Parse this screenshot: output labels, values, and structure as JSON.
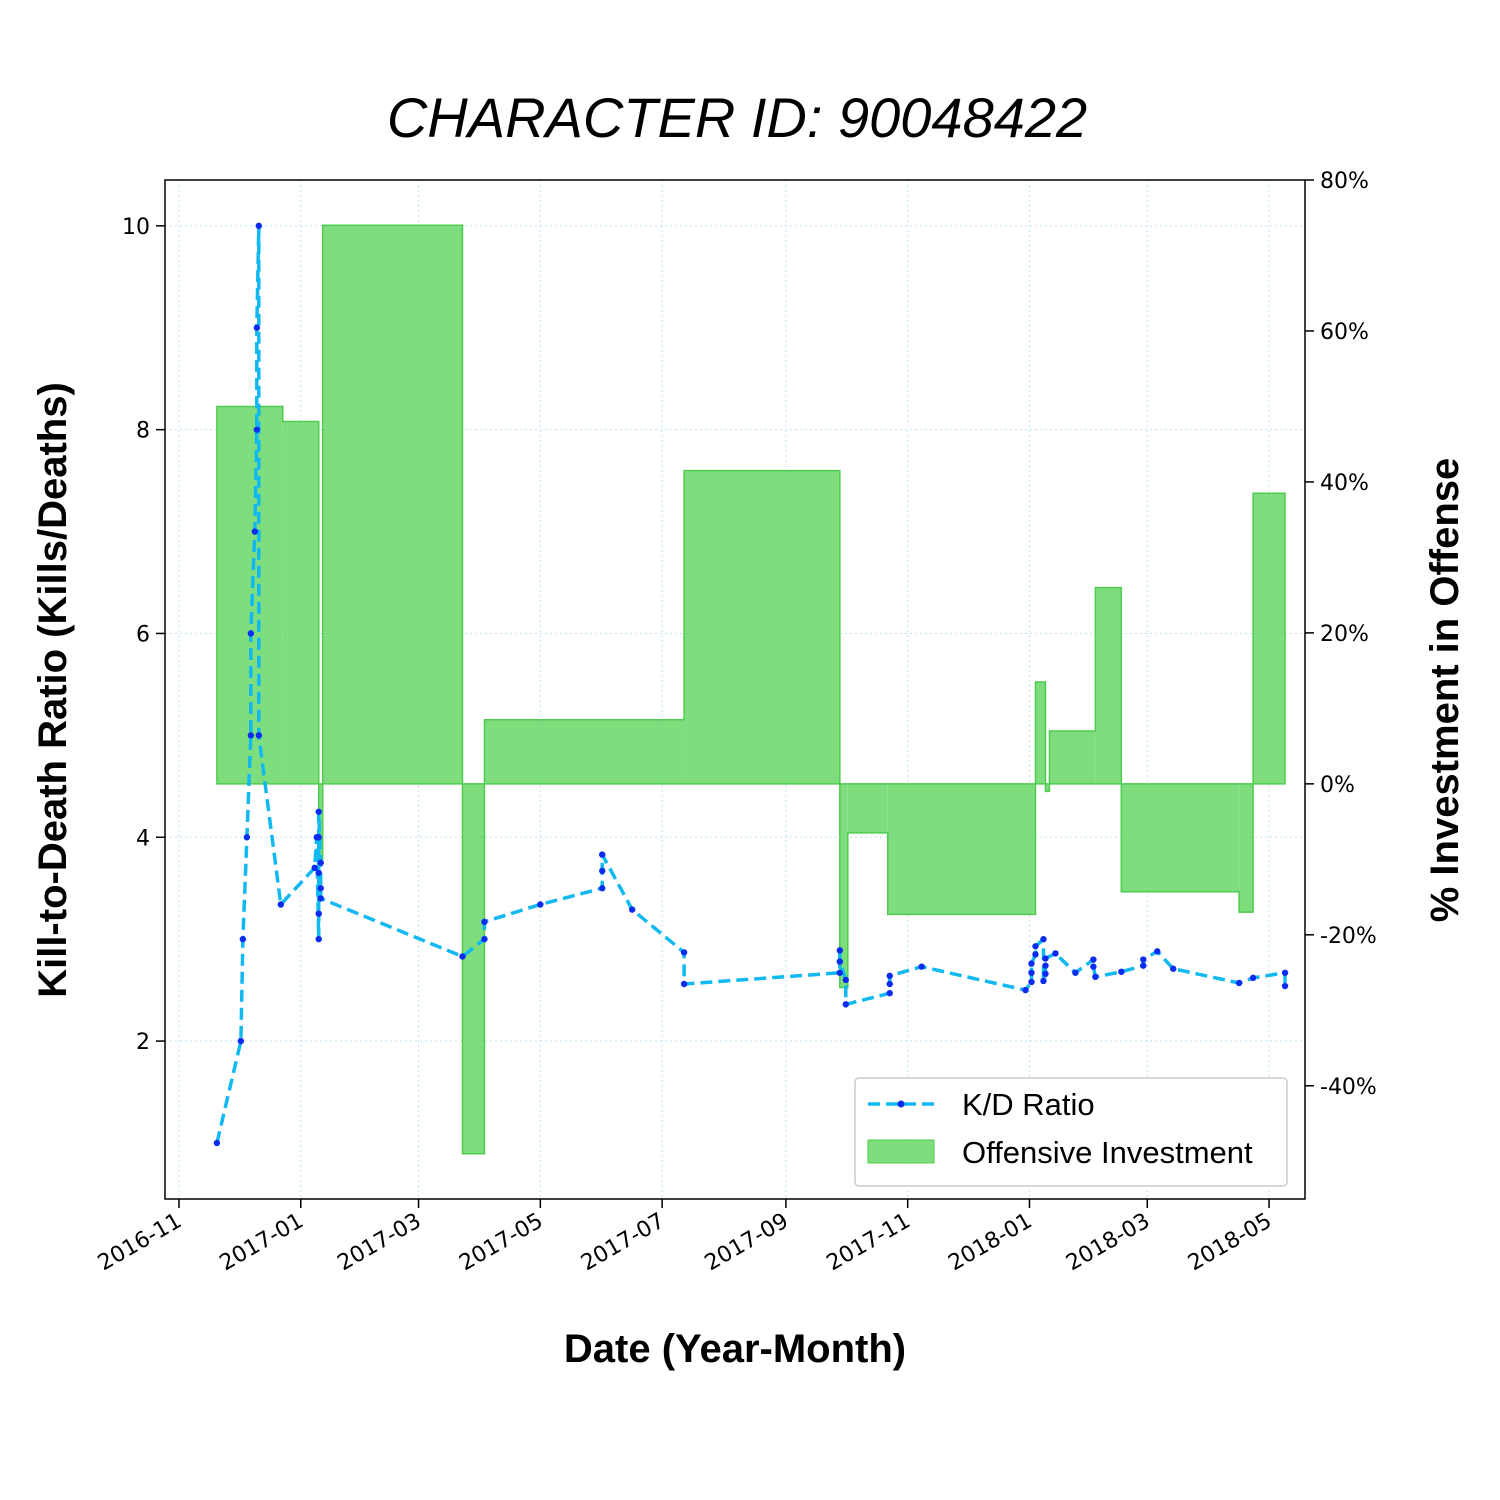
{
  "chart_data": {
    "type": "line+area",
    "title": "CHARACTER ID: 90048422",
    "xlabel": "Date (Year-Month)",
    "ylabel_left": "Kill-to-Death Ratio (Kills/Deaths)",
    "ylabel_right": "% Investment in Offense",
    "x_ticks": [
      "2016-11",
      "2017-01",
      "2017-03",
      "2017-05",
      "2017-07",
      "2017-09",
      "2017-11",
      "2018-01",
      "2018-03",
      "2018-05"
    ],
    "x_range": [
      "2016-10-25",
      "2018-05-19"
    ],
    "ylim_left": [
      0.45,
      10.45
    ],
    "y_ticks_left": [
      "2",
      "4",
      "6",
      "8",
      "10"
    ],
    "ylim_right": [
      -55,
      80
    ],
    "y_ticks_right": [
      "-40%",
      "-20%",
      "0%",
      "20%",
      "40%",
      "60%",
      "80%"
    ],
    "grid": true,
    "legend_position": "lower-right",
    "colors": {
      "kd": "#12b8f0",
      "kd_marker": "#0a2cf0",
      "investment": "#5ed65e"
    },
    "series": [
      {
        "name": "K/D Ratio",
        "style": "dashed line with point markers",
        "points": [
          [
            "2016-11-20",
            1.0
          ],
          [
            "2016-12-02",
            2.0
          ],
          [
            "2016-12-03",
            3.0
          ],
          [
            "2016-12-05",
            4.0
          ],
          [
            "2016-12-07",
            5.0
          ],
          [
            "2016-12-07",
            6.0
          ],
          [
            "2016-12-09",
            7.0
          ],
          [
            "2016-12-10",
            8.0
          ],
          [
            "2016-12-10",
            9.0
          ],
          [
            "2016-12-11",
            10.0
          ],
          [
            "2016-12-11",
            5.0
          ],
          [
            "2016-12-22",
            3.34
          ],
          [
            "2017-01-08",
            3.7
          ],
          [
            "2017-01-09",
            4.0
          ],
          [
            "2017-01-10",
            3.0
          ],
          [
            "2017-01-10",
            4.0
          ],
          [
            "2017-01-10",
            3.65
          ],
          [
            "2017-01-10",
            3.25
          ],
          [
            "2017-01-10",
            4.25
          ],
          [
            "2017-01-11",
            3.75
          ],
          [
            "2017-01-11",
            3.5
          ],
          [
            "2017-01-11",
            3.4
          ],
          [
            "2017-03-23",
            2.83
          ],
          [
            "2017-04-03",
            3.0
          ],
          [
            "2017-04-03",
            3.17
          ],
          [
            "2017-05-01",
            3.34
          ],
          [
            "2017-06-01",
            3.5
          ],
          [
            "2017-06-01",
            3.67
          ],
          [
            "2017-06-01",
            3.83
          ],
          [
            "2017-06-16",
            3.29
          ],
          [
            "2017-07-12",
            2.87
          ],
          [
            "2017-07-12",
            2.56
          ],
          [
            "2017-09-28",
            2.67
          ],
          [
            "2017-09-28",
            2.89
          ],
          [
            "2017-09-28",
            2.78
          ],
          [
            "2017-10-01",
            2.6
          ],
          [
            "2017-10-01",
            2.36
          ],
          [
            "2017-10-23",
            2.47
          ],
          [
            "2017-10-23",
            2.56
          ],
          [
            "2017-10-23",
            2.64
          ],
          [
            "2017-11-08",
            2.73
          ],
          [
            "2017-12-30",
            2.5
          ],
          [
            "2018-01-02",
            2.58
          ],
          [
            "2018-01-02",
            2.67
          ],
          [
            "2018-01-02",
            2.76
          ],
          [
            "2018-01-04",
            2.85
          ],
          [
            "2018-01-04",
            2.93
          ],
          [
            "2018-01-08",
            3.0
          ],
          [
            "2018-01-08",
            2.59
          ],
          [
            "2018-01-09",
            2.66
          ],
          [
            "2018-01-09",
            2.74
          ],
          [
            "2018-01-09",
            2.81
          ],
          [
            "2018-01-14",
            2.86
          ],
          [
            "2018-01-24",
            2.67
          ],
          [
            "2018-02-02",
            2.8
          ],
          [
            "2018-02-02",
            2.73
          ],
          [
            "2018-02-03",
            2.63
          ],
          [
            "2018-02-16",
            2.68
          ],
          [
            "2018-02-27",
            2.74
          ],
          [
            "2018-02-27",
            2.8
          ],
          [
            "2018-03-06",
            2.88
          ],
          [
            "2018-03-14",
            2.71
          ],
          [
            "2018-04-16",
            2.57
          ],
          [
            "2018-04-23",
            2.62
          ],
          [
            "2018-05-09",
            2.67
          ],
          [
            "2018-05-09",
            2.54
          ]
        ]
      },
      {
        "name": "Offensive Investment",
        "style": "step area (percent, right axis)",
        "steps": [
          [
            "2016-11-20",
            "2016-12-23",
            50
          ],
          [
            "2016-12-23",
            "2017-01-10",
            48
          ],
          [
            "2017-01-10",
            "2017-01-12",
            -10
          ],
          [
            "2017-01-12",
            "2017-03-23",
            74
          ],
          [
            "2017-03-23",
            "2017-04-03",
            -49
          ],
          [
            "2017-04-03",
            "2017-07-12",
            8.5
          ],
          [
            "2017-07-12",
            "2017-09-28",
            41.5
          ],
          [
            "2017-09-28",
            "2017-10-02",
            -27
          ],
          [
            "2017-10-02",
            "2017-10-22",
            -6.5
          ],
          [
            "2017-10-22",
            "2018-01-04",
            -17.3
          ],
          [
            "2018-01-04",
            "2018-01-09",
            13.5
          ],
          [
            "2018-01-09",
            "2018-01-11",
            -1
          ],
          [
            "2018-01-11",
            "2018-02-03",
            7
          ],
          [
            "2018-02-03",
            "2018-02-16",
            26
          ],
          [
            "2018-02-16",
            "2018-04-16",
            -14.3
          ],
          [
            "2018-04-16",
            "2018-04-23",
            -17
          ],
          [
            "2018-04-23",
            "2018-05-09",
            38.5
          ]
        ]
      }
    ]
  }
}
